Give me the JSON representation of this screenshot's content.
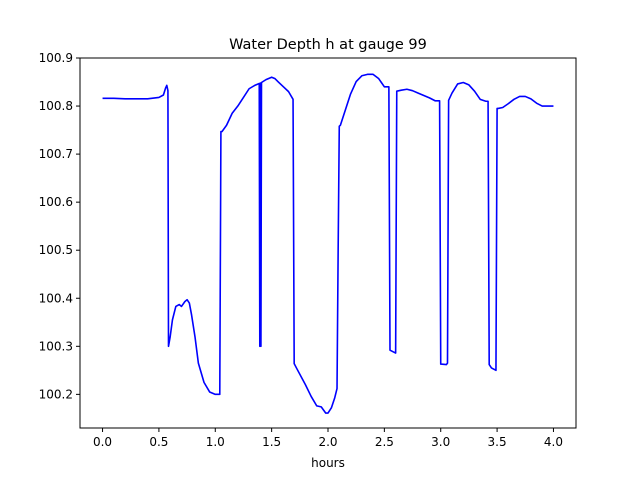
{
  "chart_data": {
    "type": "line",
    "title": "Water Depth h at gauge 99",
    "xlabel": "hours",
    "ylabel": "",
    "xlim": [
      -0.2,
      4.2
    ],
    "ylim": [
      100.13,
      100.9
    ],
    "x_ticks": [
      0.0,
      0.5,
      1.0,
      1.5,
      2.0,
      2.5,
      3.0,
      3.5,
      4.0
    ],
    "x_tick_labels": [
      "0.0",
      "0.5",
      "1.0",
      "1.5",
      "2.0",
      "2.5",
      "3.0",
      "3.5",
      "4.0"
    ],
    "y_ticks": [
      100.2,
      100.3,
      100.4,
      100.5,
      100.6,
      100.7,
      100.8,
      100.9
    ],
    "y_tick_labels": [
      "100.2",
      "100.3",
      "100.4",
      "100.5",
      "100.6",
      "100.7",
      "100.8",
      "100.9"
    ],
    "grid": false,
    "series": [
      {
        "color": "#0000ff",
        "x": [
          0.0,
          0.1,
          0.2,
          0.3,
          0.4,
          0.5,
          0.54,
          0.56,
          0.57,
          0.58,
          0.585,
          0.6,
          0.62,
          0.65,
          0.68,
          0.7,
          0.73,
          0.75,
          0.77,
          0.79,
          0.82,
          0.85,
          0.9,
          0.95,
          1.0,
          1.04,
          1.05,
          1.06,
          1.1,
          1.15,
          1.2,
          1.25,
          1.3,
          1.35,
          1.39,
          1.395,
          1.4,
          1.405,
          1.41,
          1.45,
          1.5,
          1.53,
          1.56,
          1.6,
          1.65,
          1.69,
          1.7,
          1.72,
          1.8,
          1.85,
          1.9,
          1.94,
          1.98,
          2.0,
          2.03,
          2.06,
          2.08,
          2.09,
          2.1,
          2.11,
          2.2,
          2.25,
          2.3,
          2.35,
          2.4,
          2.45,
          2.5,
          2.54,
          2.55,
          2.6,
          2.61,
          2.65,
          2.7,
          2.75,
          2.8,
          2.85,
          2.9,
          2.95,
          2.99,
          3.0,
          3.05,
          3.06,
          3.07,
          3.1,
          3.15,
          3.2,
          3.25,
          3.3,
          3.35,
          3.4,
          3.42,
          3.43,
          3.45,
          3.49,
          3.5,
          3.51,
          3.55,
          3.6,
          3.65,
          3.7,
          3.75,
          3.8,
          3.85,
          3.9,
          3.95,
          4.0
        ],
        "y": [
          100.816,
          100.816,
          100.815,
          100.815,
          100.815,
          100.818,
          100.823,
          100.838,
          100.843,
          100.832,
          100.3,
          100.32,
          100.355,
          100.383,
          100.387,
          100.383,
          100.393,
          100.397,
          100.39,
          100.365,
          100.32,
          100.265,
          100.225,
          100.205,
          100.2,
          100.2,
          100.747,
          100.747,
          100.76,
          100.785,
          100.8,
          100.818,
          100.836,
          100.843,
          100.847,
          100.3,
          100.848,
          100.3,
          100.849,
          100.855,
          100.86,
          100.857,
          100.85,
          100.841,
          100.83,
          100.814,
          100.264,
          100.255,
          100.22,
          100.196,
          100.176,
          100.174,
          100.161,
          100.161,
          100.172,
          100.193,
          100.212,
          100.5,
          100.758,
          100.76,
          100.825,
          100.851,
          100.863,
          100.866,
          100.866,
          100.857,
          100.84,
          100.84,
          100.292,
          100.286,
          100.831,
          100.833,
          100.835,
          100.832,
          100.827,
          100.822,
          100.817,
          100.811,
          100.811,
          100.263,
          100.262,
          100.265,
          100.812,
          100.827,
          100.846,
          100.849,
          100.844,
          100.831,
          100.814,
          100.81,
          100.81,
          100.262,
          100.255,
          100.25,
          100.795,
          100.795,
          100.797,
          100.805,
          100.814,
          100.82,
          100.82,
          100.815,
          100.806,
          100.8,
          100.8,
          100.8
        ]
      }
    ]
  }
}
